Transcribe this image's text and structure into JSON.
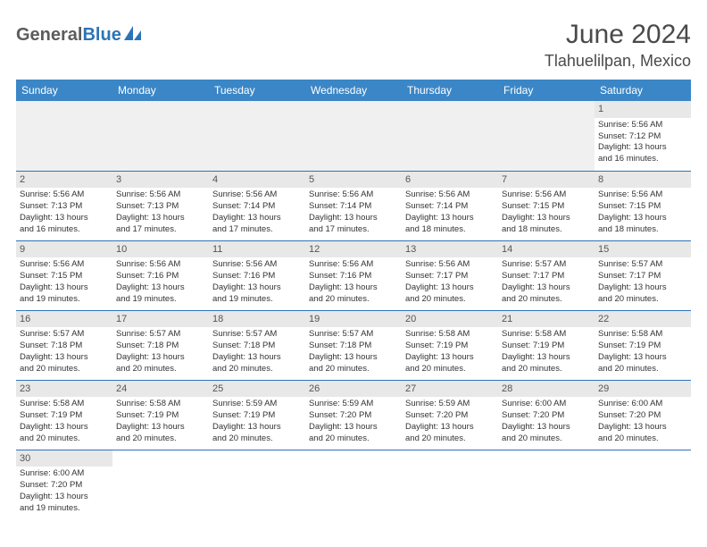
{
  "colors": {
    "header_bg": "#3b86c6",
    "header_text": "#ffffff",
    "divider": "#2d74b6",
    "daynum_bg": "#e8e8e8",
    "text": "#333333",
    "logo_gray": "#5c5c5c",
    "logo_blue": "#2d74b6"
  },
  "logo": {
    "part1": "General",
    "part2": "Blue"
  },
  "title": "June 2024",
  "location": "Tlahuelilpan, Mexico",
  "day_headers": [
    "Sunday",
    "Monday",
    "Tuesday",
    "Wednesday",
    "Thursday",
    "Friday",
    "Saturday"
  ],
  "weeks": [
    [
      null,
      null,
      null,
      null,
      null,
      null,
      {
        "n": "1",
        "sr": "Sunrise: 5:56 AM",
        "ss": "Sunset: 7:12 PM",
        "d1": "Daylight: 13 hours",
        "d2": "and 16 minutes."
      }
    ],
    [
      {
        "n": "2",
        "sr": "Sunrise: 5:56 AM",
        "ss": "Sunset: 7:13 PM",
        "d1": "Daylight: 13 hours",
        "d2": "and 16 minutes."
      },
      {
        "n": "3",
        "sr": "Sunrise: 5:56 AM",
        "ss": "Sunset: 7:13 PM",
        "d1": "Daylight: 13 hours",
        "d2": "and 17 minutes."
      },
      {
        "n": "4",
        "sr": "Sunrise: 5:56 AM",
        "ss": "Sunset: 7:14 PM",
        "d1": "Daylight: 13 hours",
        "d2": "and 17 minutes."
      },
      {
        "n": "5",
        "sr": "Sunrise: 5:56 AM",
        "ss": "Sunset: 7:14 PM",
        "d1": "Daylight: 13 hours",
        "d2": "and 17 minutes."
      },
      {
        "n": "6",
        "sr": "Sunrise: 5:56 AM",
        "ss": "Sunset: 7:14 PM",
        "d1": "Daylight: 13 hours",
        "d2": "and 18 minutes."
      },
      {
        "n": "7",
        "sr": "Sunrise: 5:56 AM",
        "ss": "Sunset: 7:15 PM",
        "d1": "Daylight: 13 hours",
        "d2": "and 18 minutes."
      },
      {
        "n": "8",
        "sr": "Sunrise: 5:56 AM",
        "ss": "Sunset: 7:15 PM",
        "d1": "Daylight: 13 hours",
        "d2": "and 18 minutes."
      }
    ],
    [
      {
        "n": "9",
        "sr": "Sunrise: 5:56 AM",
        "ss": "Sunset: 7:15 PM",
        "d1": "Daylight: 13 hours",
        "d2": "and 19 minutes."
      },
      {
        "n": "10",
        "sr": "Sunrise: 5:56 AM",
        "ss": "Sunset: 7:16 PM",
        "d1": "Daylight: 13 hours",
        "d2": "and 19 minutes."
      },
      {
        "n": "11",
        "sr": "Sunrise: 5:56 AM",
        "ss": "Sunset: 7:16 PM",
        "d1": "Daylight: 13 hours",
        "d2": "and 19 minutes."
      },
      {
        "n": "12",
        "sr": "Sunrise: 5:56 AM",
        "ss": "Sunset: 7:16 PM",
        "d1": "Daylight: 13 hours",
        "d2": "and 20 minutes."
      },
      {
        "n": "13",
        "sr": "Sunrise: 5:56 AM",
        "ss": "Sunset: 7:17 PM",
        "d1": "Daylight: 13 hours",
        "d2": "and 20 minutes."
      },
      {
        "n": "14",
        "sr": "Sunrise: 5:57 AM",
        "ss": "Sunset: 7:17 PM",
        "d1": "Daylight: 13 hours",
        "d2": "and 20 minutes."
      },
      {
        "n": "15",
        "sr": "Sunrise: 5:57 AM",
        "ss": "Sunset: 7:17 PM",
        "d1": "Daylight: 13 hours",
        "d2": "and 20 minutes."
      }
    ],
    [
      {
        "n": "16",
        "sr": "Sunrise: 5:57 AM",
        "ss": "Sunset: 7:18 PM",
        "d1": "Daylight: 13 hours",
        "d2": "and 20 minutes."
      },
      {
        "n": "17",
        "sr": "Sunrise: 5:57 AM",
        "ss": "Sunset: 7:18 PM",
        "d1": "Daylight: 13 hours",
        "d2": "and 20 minutes."
      },
      {
        "n": "18",
        "sr": "Sunrise: 5:57 AM",
        "ss": "Sunset: 7:18 PM",
        "d1": "Daylight: 13 hours",
        "d2": "and 20 minutes."
      },
      {
        "n": "19",
        "sr": "Sunrise: 5:57 AM",
        "ss": "Sunset: 7:18 PM",
        "d1": "Daylight: 13 hours",
        "d2": "and 20 minutes."
      },
      {
        "n": "20",
        "sr": "Sunrise: 5:58 AM",
        "ss": "Sunset: 7:19 PM",
        "d1": "Daylight: 13 hours",
        "d2": "and 20 minutes."
      },
      {
        "n": "21",
        "sr": "Sunrise: 5:58 AM",
        "ss": "Sunset: 7:19 PM",
        "d1": "Daylight: 13 hours",
        "d2": "and 20 minutes."
      },
      {
        "n": "22",
        "sr": "Sunrise: 5:58 AM",
        "ss": "Sunset: 7:19 PM",
        "d1": "Daylight: 13 hours",
        "d2": "and 20 minutes."
      }
    ],
    [
      {
        "n": "23",
        "sr": "Sunrise: 5:58 AM",
        "ss": "Sunset: 7:19 PM",
        "d1": "Daylight: 13 hours",
        "d2": "and 20 minutes."
      },
      {
        "n": "24",
        "sr": "Sunrise: 5:58 AM",
        "ss": "Sunset: 7:19 PM",
        "d1": "Daylight: 13 hours",
        "d2": "and 20 minutes."
      },
      {
        "n": "25",
        "sr": "Sunrise: 5:59 AM",
        "ss": "Sunset: 7:19 PM",
        "d1": "Daylight: 13 hours",
        "d2": "and 20 minutes."
      },
      {
        "n": "26",
        "sr": "Sunrise: 5:59 AM",
        "ss": "Sunset: 7:20 PM",
        "d1": "Daylight: 13 hours",
        "d2": "and 20 minutes."
      },
      {
        "n": "27",
        "sr": "Sunrise: 5:59 AM",
        "ss": "Sunset: 7:20 PM",
        "d1": "Daylight: 13 hours",
        "d2": "and 20 minutes."
      },
      {
        "n": "28",
        "sr": "Sunrise: 6:00 AM",
        "ss": "Sunset: 7:20 PM",
        "d1": "Daylight: 13 hours",
        "d2": "and 20 minutes."
      },
      {
        "n": "29",
        "sr": "Sunrise: 6:00 AM",
        "ss": "Sunset: 7:20 PM",
        "d1": "Daylight: 13 hours",
        "d2": "and 20 minutes."
      }
    ],
    [
      {
        "n": "30",
        "sr": "Sunrise: 6:00 AM",
        "ss": "Sunset: 7:20 PM",
        "d1": "Daylight: 13 hours",
        "d2": "and 19 minutes."
      },
      null,
      null,
      null,
      null,
      null,
      null
    ]
  ]
}
